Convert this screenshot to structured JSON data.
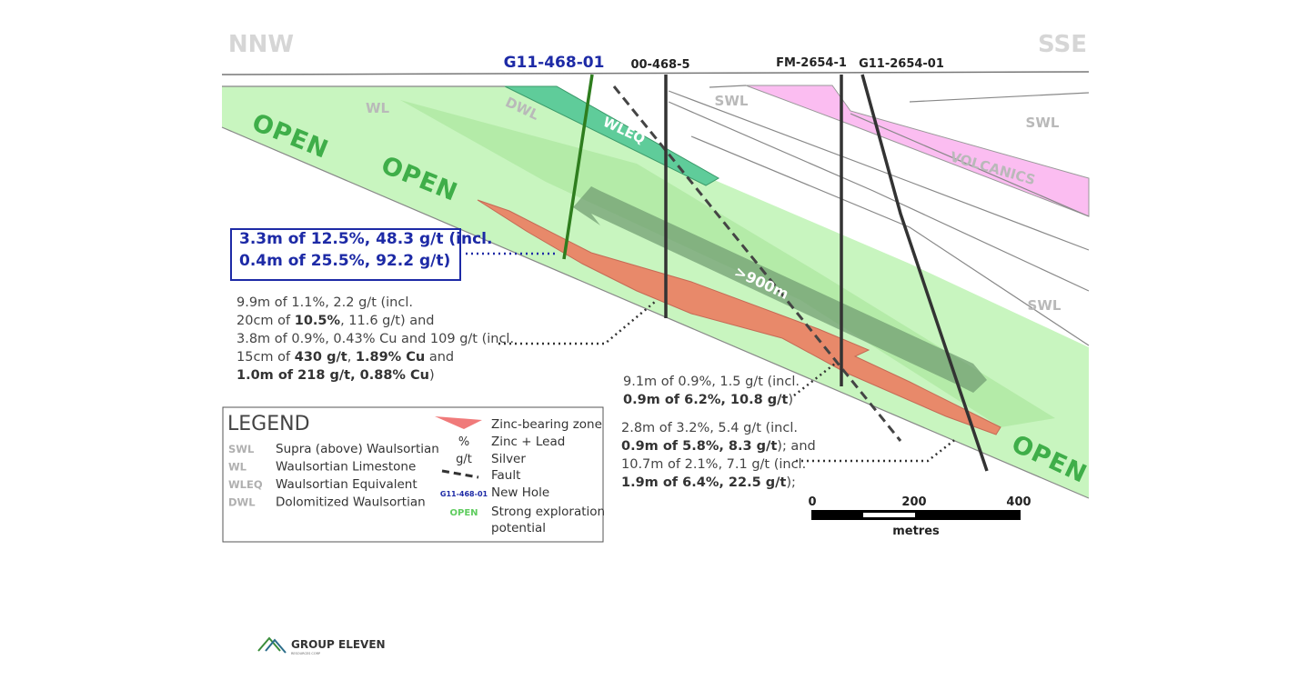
{
  "orientation": {
    "left": "NNW",
    "right": "SSE"
  },
  "holes": [
    "G11-468-01",
    "00-468-5",
    "FM-2654-1",
    "G11-2654-01"
  ],
  "units": [
    "WL",
    "DWL",
    "WLEQ",
    "SWL",
    "SWL",
    "SWL",
    "VOLCANICS"
  ],
  "open_labels": [
    "OPEN",
    "OPEN",
    "OPEN"
  ],
  "distance": ">900m",
  "callouts": [
    {
      "lines": [
        [
          {
            "text": "3.3m of 12.5%, 48.3 g/t (incl."
          }
        ],
        [
          {
            "text": "0.4m of 25.5%, 92.2 g/t)"
          }
        ]
      ]
    },
    {
      "lines": [
        [
          {
            "text": "9.9m of 1.1%, 2.2 g/t (incl."
          }
        ],
        [
          {
            "text": "20cm of "
          },
          {
            "text": "10.5%",
            "bold": true
          },
          {
            "text": ", 11.6 g/t) and"
          }
        ],
        [
          {
            "text": "3.8m of 0.9%, 0.43% Cu and 109 g/t (incl."
          }
        ],
        [
          {
            "text": "15cm of "
          },
          {
            "text": "430 g/t",
            "bold": true
          },
          {
            "text": ", "
          },
          {
            "text": "1.89% Cu",
            "bold": true
          },
          {
            "text": " and"
          }
        ],
        [
          {
            "text": "1.0m of 218 g/t, 0.88% Cu",
            "bold": true
          },
          {
            "text": ")"
          }
        ]
      ]
    },
    {
      "lines": [
        [
          {
            "text": "9.1m of 0.9%, 1.5 g/t (incl."
          }
        ],
        [
          {
            "text": "0.9m of 6.2%, 10.8 g/t",
            "bold": true
          },
          {
            "text": ")"
          }
        ]
      ]
    },
    {
      "lines": [
        [
          {
            "text": "2.8m of 3.2%, 5.4 g/t (incl."
          }
        ],
        [
          {
            "text": "0.9m of 5.8%, 8.3 g/t",
            "bold": true
          },
          {
            "text": "); and"
          }
        ],
        [
          {
            "text": "10.7m of 2.1%, 7.1 g/t (incl."
          }
        ],
        [
          {
            "text": "1.9m of 6.4%, 22.5 g/t",
            "bold": true
          },
          {
            "text": ");"
          }
        ]
      ]
    }
  ],
  "legend": {
    "title": "LEGEND",
    "units": [
      {
        "code": "SWL",
        "label": "Supra (above) Waulsortian"
      },
      {
        "code": "WL",
        "label": "Waulsortian Limestone"
      },
      {
        "code": "WLEQ",
        "label": "Waulsortian Equivalent"
      },
      {
        "code": "DWL",
        "label": "Dolomitized Waulsortian"
      }
    ],
    "symbols": [
      {
        "label": [
          "Zinc-bearing zone"
        ]
      },
      {
        "symbol": "%",
        "label": [
          "Zinc + Lead"
        ]
      },
      {
        "symbol": "g/t",
        "label": [
          "Silver"
        ]
      },
      {
        "label": [
          "Fault"
        ]
      },
      {
        "symbol": "G11-468-01",
        "label": [
          "New Hole"
        ]
      },
      {
        "symbol": "OPEN",
        "label": [
          "Strong exploration",
          "potential"
        ]
      }
    ]
  },
  "scale": {
    "ticks": [
      0,
      200,
      400
    ],
    "unit": "metres"
  },
  "logo": {
    "name": "GROUP ELEVEN",
    "subtitle": "RESOURCES CORP"
  }
}
